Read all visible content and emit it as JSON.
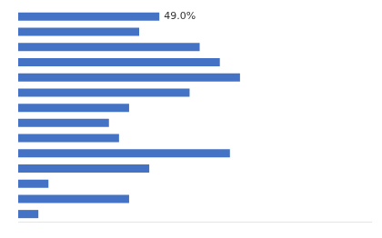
{
  "chart_data": {
    "type": "bar",
    "orientation": "horizontal",
    "categories": [
      null,
      null,
      null,
      null,
      null,
      null,
      null,
      null,
      null,
      null,
      null,
      null,
      null,
      null
    ],
    "values": [
      14,
      12,
      18,
      20,
      22,
      17,
      11,
      9,
      10,
      21,
      13,
      3,
      11,
      2
    ],
    "color": "#4472C4",
    "xlim": [
      0,
      35
    ],
    "annotation": "49.0%",
    "tick_labels": false,
    "grid": false
  }
}
